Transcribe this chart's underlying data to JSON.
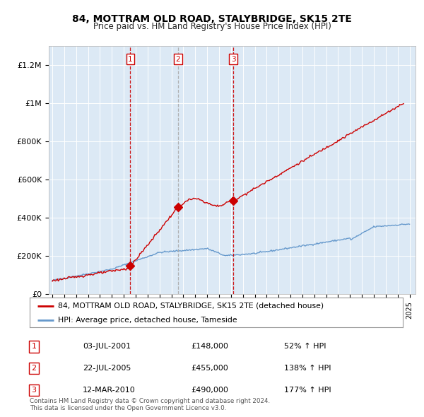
{
  "title": "84, MOTTRAM OLD ROAD, STALYBRIDGE, SK15 2TE",
  "subtitle": "Price paid vs. HM Land Registry's House Price Index (HPI)",
  "sales": [
    {
      "num": 1,
      "date": "03-JUL-2001",
      "year": 2001.55,
      "price": 148000,
      "pct": "52%",
      "dir": "↑",
      "line_color": "#cc0000"
    },
    {
      "num": 2,
      "date": "22-JUL-2005",
      "year": 2005.55,
      "price": 455000,
      "pct": "138%",
      "dir": "↑",
      "line_color": "#aaaaaa"
    },
    {
      "num": 3,
      "date": "12-MAR-2010",
      "year": 2010.2,
      "price": 490000,
      "pct": "177%",
      "dir": "↑",
      "line_color": "#cc0000"
    }
  ],
  "legend_property": "84, MOTTRAM OLD ROAD, STALYBRIDGE, SK15 2TE (detached house)",
  "legend_hpi": "HPI: Average price, detached house, Tameside",
  "footer1": "Contains HM Land Registry data © Crown copyright and database right 2024.",
  "footer2": "This data is licensed under the Open Government Licence v3.0.",
  "red_color": "#cc0000",
  "blue_color": "#6699cc",
  "background_color": "#dce9f5",
  "ylim": [
    0,
    1300000
  ],
  "xlim_start": 1994.7,
  "xlim_end": 2025.5
}
